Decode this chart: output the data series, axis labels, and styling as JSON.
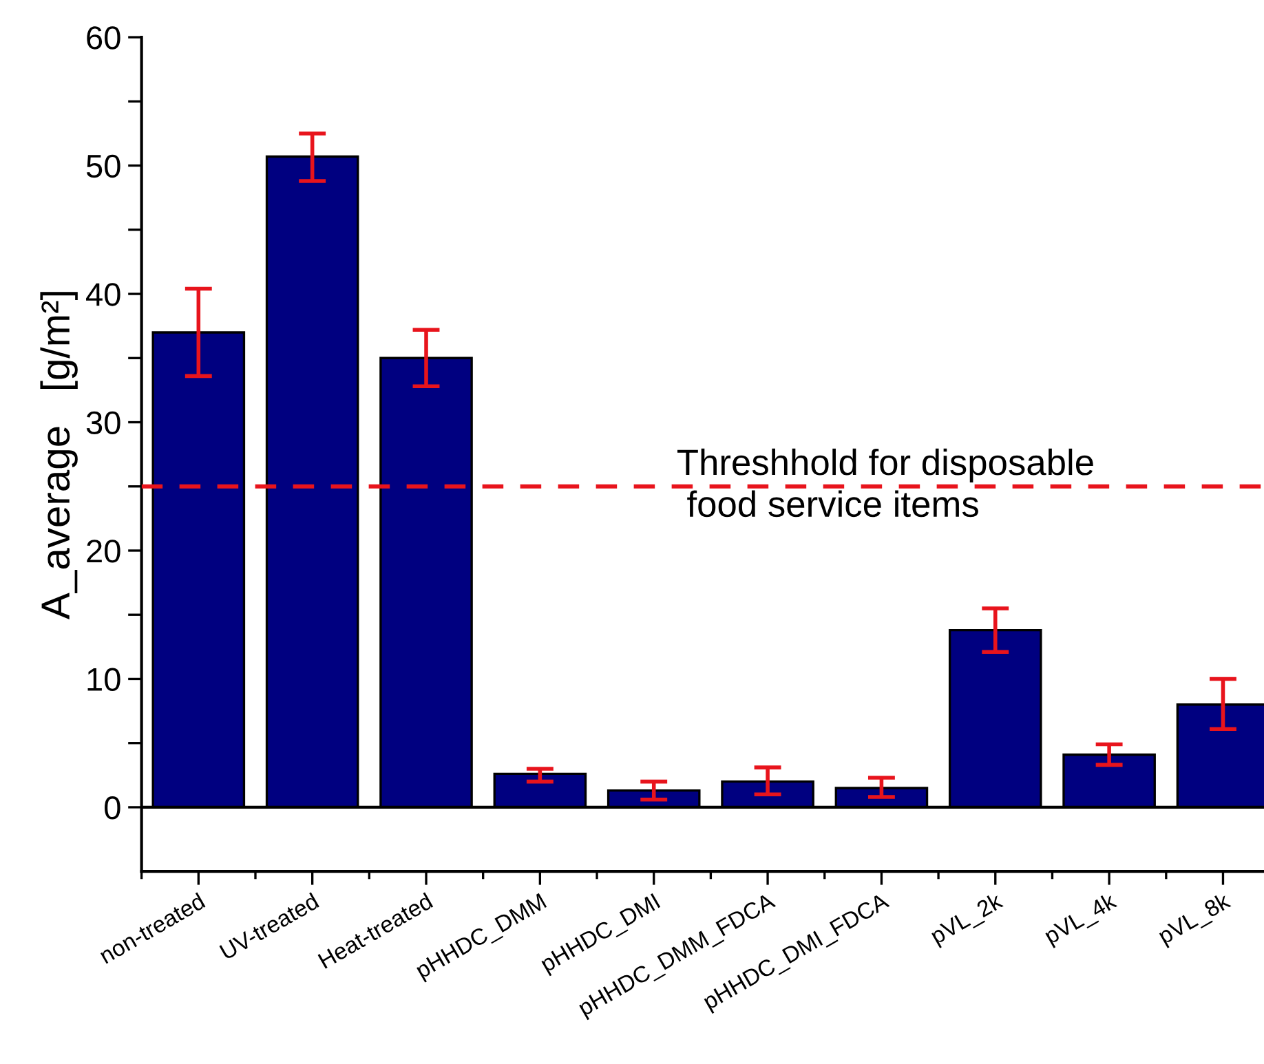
{
  "chart_data": {
    "type": "bar",
    "ylabel": "A_average   [g/m²]",
    "categories": [
      "non-treated",
      "UV-treated",
      "Heat-treated",
      "pHHDC_DMM",
      "pHHDC_DMI",
      "pHHDC_DMM_FDCA",
      "pHHDC_DMI_FDCA",
      "pVL_2k",
      "pVL_4k",
      "pVL_8k"
    ],
    "series": [
      {
        "color": "#000080",
        "values": [
          37.0,
          50.7,
          35.0,
          2.6,
          1.3,
          2.0,
          1.5,
          13.8,
          4.1,
          8.0
        ],
        "errors": [
          [
            33.6,
            40.4
          ],
          [
            48.8,
            52.5
          ],
          [
            32.8,
            37.2
          ],
          [
            2.0,
            3.0
          ],
          [
            0.6,
            2.0
          ],
          [
            1.0,
            3.1
          ],
          [
            0.8,
            2.3
          ],
          [
            12.1,
            15.5
          ],
          [
            3.3,
            4.9
          ],
          [
            6.1,
            10.0
          ]
        ]
      }
    ],
    "ylim": [
      -5,
      60
    ],
    "yticks": [
      0,
      {
        "value": 5,
        "label": null
      },
      10,
      {
        "value": 15,
        "label": null
      },
      20,
      {
        "value": 25,
        "label": null
      },
      30,
      {
        "value": 35,
        "label": null
      },
      40,
      {
        "value": 45,
        "label": null
      },
      50,
      {
        "value": 55,
        "label": null
      },
      60
    ],
    "ref_lines": [
      {
        "axis": "y",
        "value": 25,
        "label": "Threshhold for disposable\n food service items",
        "color": "#e8141c",
        "line_style": "dashed"
      }
    ],
    "grid": false,
    "legend": false
  }
}
